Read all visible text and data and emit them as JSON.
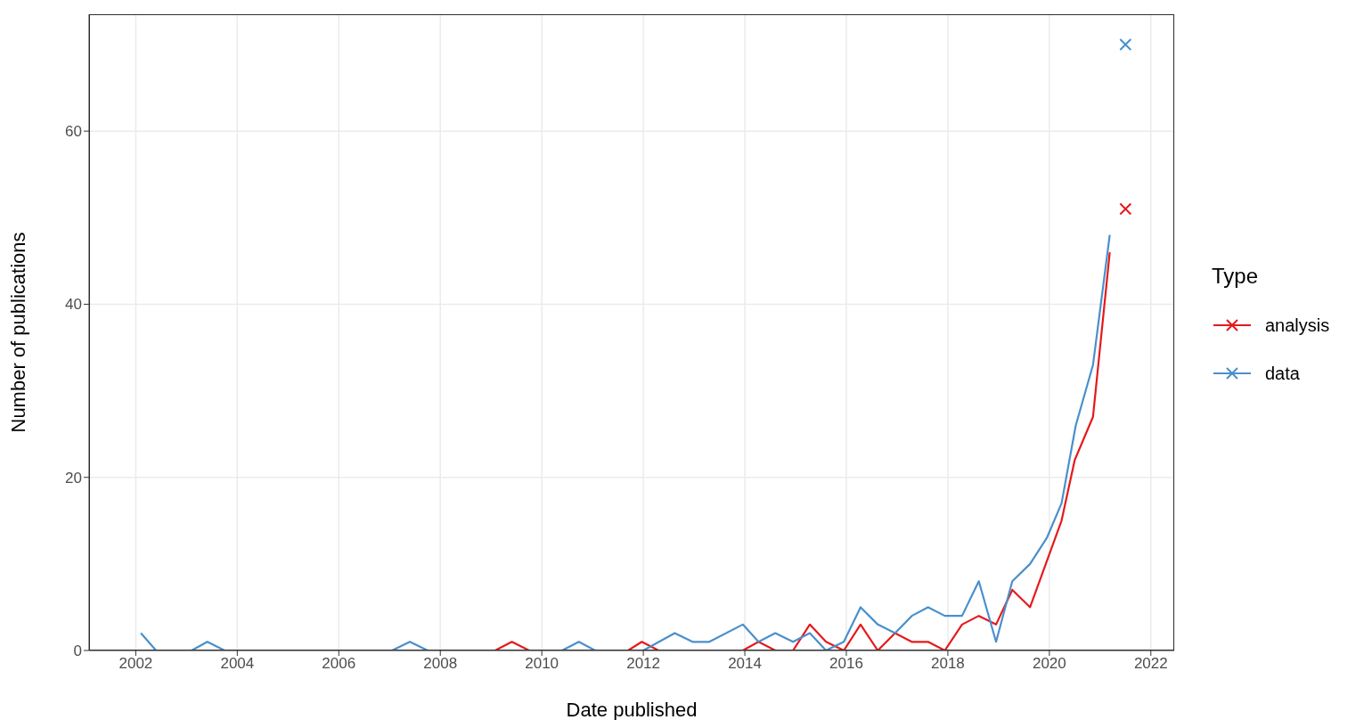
{
  "chart_data": {
    "type": "line",
    "xlabel": "Date published",
    "ylabel": "Number of publications",
    "legend_title": "Type",
    "xlim": [
      2001.08,
      2022.46
    ],
    "ylim": [
      0,
      73.5
    ],
    "xticks": [
      2002,
      2004,
      2006,
      2008,
      2010,
      2012,
      2014,
      2016,
      2018,
      2020,
      2022
    ],
    "yticks": [
      0,
      20,
      40,
      60
    ],
    "grid": true,
    "legend": "right",
    "series": [
      {
        "name": "analysis",
        "color": "#e41a1c",
        "x": [
          2009.08,
          2009.41,
          2009.75,
          2011.7,
          2011.97,
          2012.3,
          2013.96,
          2014.27,
          2014.6,
          2014.95,
          2015.28,
          2015.6,
          2015.95,
          2016.28,
          2016.62,
          2016.96,
          2017.29,
          2017.61,
          2017.94,
          2018.28,
          2018.61,
          2018.95,
          2019.27,
          2019.62,
          2019.93,
          2020.24,
          2020.5,
          2020.86,
          2021.19
        ],
        "values": [
          0,
          1,
          0,
          0,
          1,
          0,
          0,
          1,
          0,
          0,
          3,
          1,
          0,
          3,
          0,
          2,
          1,
          1,
          0,
          3,
          4,
          3,
          7,
          5,
          10,
          15,
          22,
          27,
          46
        ]
      },
      {
        "name": "data",
        "color": "#4a8fcc",
        "x": [
          2002.1,
          2002.4,
          2003.1,
          2003.41,
          2003.75,
          2007.05,
          2007.4,
          2007.75,
          2010.4,
          2010.73,
          2011.05,
          2012.0,
          2012.62,
          2012.97,
          2013.3,
          2013.96,
          2014.27,
          2014.6,
          2014.95,
          2015.28,
          2015.6,
          2015.95,
          2016.28,
          2016.62,
          2016.96,
          2017.29,
          2017.61,
          2017.94,
          2018.28,
          2018.61,
          2018.95,
          2019.27,
          2019.62,
          2019.95,
          2020.24,
          2020.52,
          2020.86,
          2021.19
        ],
        "values": [
          2,
          0,
          0,
          1,
          0,
          0,
          1,
          0,
          0,
          1,
          0,
          0,
          2,
          1,
          1,
          3,
          1,
          2,
          1,
          2,
          0,
          1,
          5,
          3,
          2,
          4,
          5,
          4,
          4,
          8,
          1,
          8,
          10,
          13,
          17,
          26,
          33,
          48
        ]
      },
      {
        "type": "scatter",
        "marker": "cross",
        "color": "#e41a1c",
        "x": [
          2021.5
        ],
        "values": [
          51
        ]
      },
      {
        "type": "scatter",
        "marker": "cross",
        "color": "#4a8fcc",
        "x": [
          2021.5
        ],
        "values": [
          70
        ]
      }
    ]
  }
}
